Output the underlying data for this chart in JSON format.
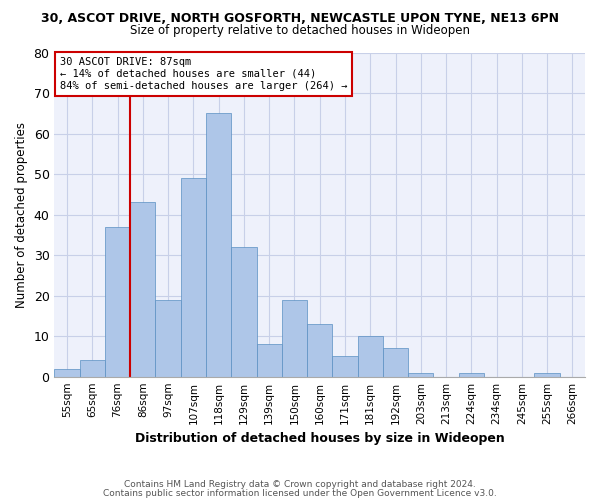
{
  "title1": "30, ASCOT DRIVE, NORTH GOSFORTH, NEWCASTLE UPON TYNE, NE13 6PN",
  "title2": "Size of property relative to detached houses in Wideopen",
  "xlabel": "Distribution of detached houses by size in Wideopen",
  "ylabel": "Number of detached properties",
  "categories": [
    "55sqm",
    "65sqm",
    "76sqm",
    "86sqm",
    "97sqm",
    "107sqm",
    "118sqm",
    "129sqm",
    "139sqm",
    "150sqm",
    "160sqm",
    "171sqm",
    "181sqm",
    "192sqm",
    "203sqm",
    "213sqm",
    "224sqm",
    "234sqm",
    "245sqm",
    "255sqm",
    "266sqm"
  ],
  "values": [
    2,
    4,
    37,
    43,
    19,
    49,
    65,
    32,
    8,
    19,
    13,
    5,
    10,
    7,
    1,
    0,
    1,
    0,
    0,
    1,
    0
  ],
  "bar_color": "#aec6e8",
  "bar_edge_color": "#5a8fc2",
  "vline_color": "#cc0000",
  "annotation_text": "30 ASCOT DRIVE: 87sqm\n← 14% of detached houses are smaller (44)\n84% of semi-detached houses are larger (264) →",
  "annotation_box_color": "white",
  "annotation_box_edge": "#cc0000",
  "ylim": [
    0,
    80
  ],
  "yticks": [
    0,
    10,
    20,
    30,
    40,
    50,
    60,
    70,
    80
  ],
  "grid_color": "#c8d0e8",
  "bg_color": "#eef1fb",
  "footer1": "Contains HM Land Registry data © Crown copyright and database right 2024.",
  "footer2": "Contains public sector information licensed under the Open Government Licence v3.0."
}
